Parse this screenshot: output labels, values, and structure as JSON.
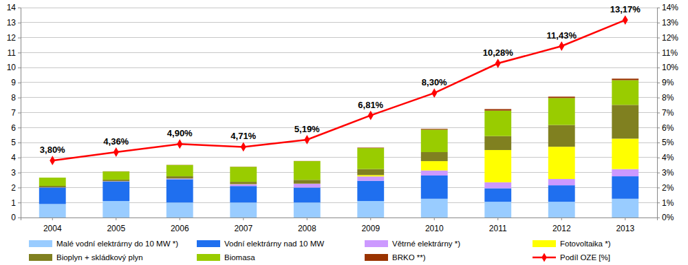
{
  "chart_data": {
    "type": "bar",
    "stacked": true,
    "grid": true,
    "legend": "bottom",
    "categories": [
      "2004",
      "2005",
      "2006",
      "2007",
      "2008",
      "2009",
      "2010",
      "2011",
      "2012",
      "2013"
    ],
    "ylim": [
      0,
      14
    ],
    "yticks": [
      0,
      1,
      2,
      3,
      4,
      5,
      6,
      7,
      8,
      9,
      10,
      11,
      12,
      13,
      14
    ],
    "y2lim": [
      0,
      14
    ],
    "y2ticks": [
      {
        "value": 0,
        "label": "0%"
      },
      {
        "value": 1,
        "label": "1%"
      },
      {
        "value": 2,
        "label": "2%"
      },
      {
        "value": 3,
        "label": "3%"
      },
      {
        "value": 4,
        "label": "4%"
      },
      {
        "value": 5,
        "label": "5%"
      },
      {
        "value": 6,
        "label": "6%"
      },
      {
        "value": 7,
        "label": "7%"
      },
      {
        "value": 8,
        "label": "8%"
      },
      {
        "value": 9,
        "label": "9%"
      },
      {
        "value": 10,
        "label": "10%"
      },
      {
        "value": 11,
        "label": "11%"
      },
      {
        "value": 12,
        "label": "12%"
      },
      {
        "value": 13,
        "label": "13%"
      },
      {
        "value": 14,
        "label": "14%"
      }
    ],
    "series": [
      {
        "name": "Malé vodní elektrárny do 10 MW *)",
        "color": "#99ccff",
        "values": [
          0.9,
          1.1,
          1.0,
          1.0,
          1.0,
          1.1,
          1.25,
          1.05,
          1.05,
          1.25
        ]
      },
      {
        "name": "Vodní elektrárny nad 10 MW",
        "color": "#1f6fef",
        "values": [
          1.1,
          1.3,
          1.55,
          1.1,
          1.0,
          1.35,
          1.55,
          0.9,
          1.1,
          1.5
        ]
      },
      {
        "name": "Větrné elektrárny *)",
        "color": "#cc99ff",
        "values": [
          0.01,
          0.02,
          0.05,
          0.12,
          0.25,
          0.29,
          0.34,
          0.4,
          0.42,
          0.48
        ]
      },
      {
        "name": "Fotovoltaika *)",
        "color": "#ffff00",
        "values": [
          0,
          0,
          0,
          0.01,
          0.01,
          0.09,
          0.62,
          2.15,
          2.15,
          2.03
        ]
      },
      {
        "name": "Bioplyn + skládkový plyn",
        "color": "#808020",
        "values": [
          0.1,
          0.1,
          0.15,
          0.15,
          0.25,
          0.4,
          0.6,
          0.93,
          1.45,
          2.25
        ]
      },
      {
        "name": "Biomasa",
        "color": "#99cc00",
        "values": [
          0.55,
          0.55,
          0.75,
          1.0,
          1.25,
          1.4,
          1.5,
          1.7,
          1.8,
          1.65
        ]
      },
      {
        "name": "BRKO **)",
        "color": "#993300",
        "values": [
          0,
          0.01,
          0.01,
          0.01,
          0.01,
          0.03,
          0.05,
          0.1,
          0.09,
          0.1
        ]
      },
      {
        "name": "Podíl OZE [%]",
        "color": "#ff0000",
        "type": "line",
        "axis": "y2",
        "marker": "diamond",
        "data_labels": true,
        "values": [
          3.8,
          4.36,
          4.9,
          4.71,
          5.19,
          6.81,
          8.3,
          10.28,
          11.43,
          13.17
        ],
        "value_labels": [
          "3,80%",
          "4,36%",
          "4,90%",
          "4,71%",
          "5,19%",
          "6,81%",
          "8,30%",
          "10,28%",
          "11,43%",
          "13,17%"
        ]
      }
    ]
  }
}
